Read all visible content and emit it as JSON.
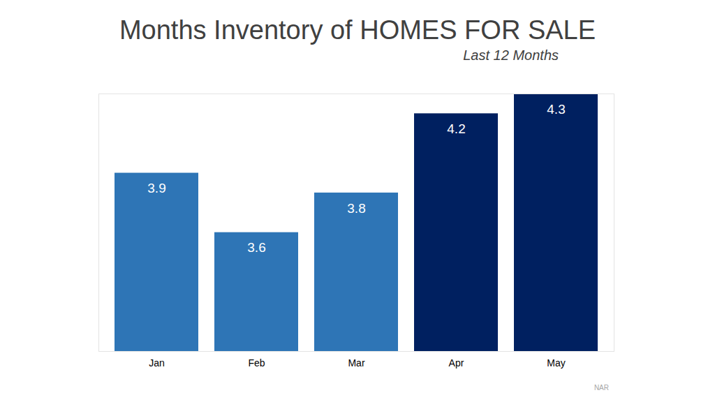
{
  "chart_data": {
    "type": "bar",
    "title": "Months Inventory of HOMES FOR SALE",
    "subtitle": "Last 12 Months",
    "caption": "NAR",
    "categories": [
      "Jan",
      "Feb",
      "Mar",
      "Apr",
      "May"
    ],
    "values": [
      3.9,
      3.6,
      3.8,
      4.2,
      4.3
    ],
    "colors": [
      "#2e75b6",
      "#2e75b6",
      "#2e75b6",
      "#002060",
      "#002060"
    ],
    "ylim": [
      3,
      4.3
    ],
    "yticks": [],
    "tick_labels": "x",
    "data_labels": true,
    "grid": false
  }
}
